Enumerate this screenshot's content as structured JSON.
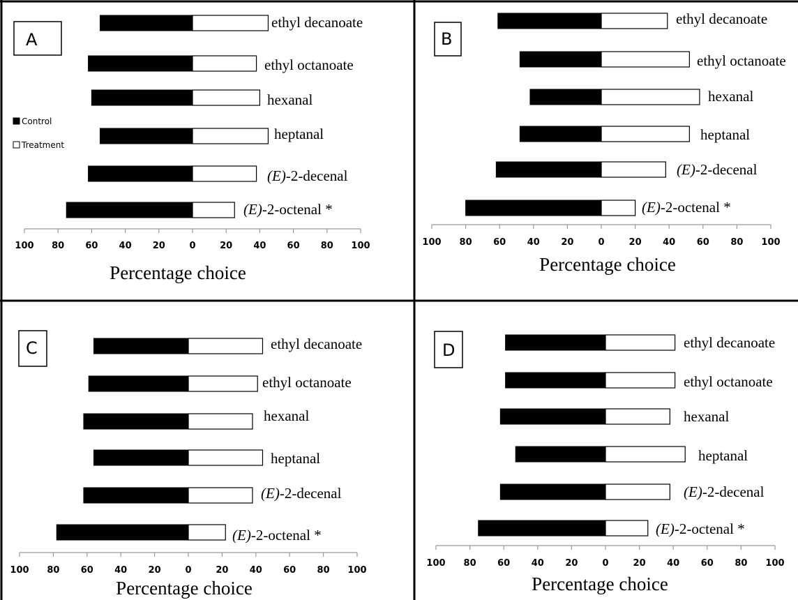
{
  "legend": {
    "control_label": "Control",
    "treatment_label": "Treatment"
  },
  "chart_data": [
    {
      "type": "bar",
      "panel": "A",
      "categories": [
        "ethyl decanoate",
        "ethyl octanoate",
        "hexanal",
        "heptanal",
        "(E)-2-decenal",
        "(E)-2-octenal *"
      ],
      "series": [
        {
          "name": "Control",
          "values": [
            55,
            62,
            60,
            55,
            62,
            75
          ]
        },
        {
          "name": "Treatment",
          "values": [
            45,
            38,
            40,
            45,
            38,
            25
          ]
        }
      ],
      "xlabel": "Percentage choice",
      "xlim": [
        -100,
        100
      ],
      "tick_labels": [
        "100",
        "80",
        "60",
        "40",
        "20",
        "0",
        "20",
        "40",
        "60",
        "80",
        "100"
      ]
    },
    {
      "type": "bar",
      "panel": "B",
      "categories": [
        "ethyl decanoate",
        "ethyl octanoate",
        "hexanal",
        "heptanal",
        "(E)-2-decenal",
        "(E)-2-octenal *"
      ],
      "series": [
        {
          "name": "Control",
          "values": [
            61,
            48,
            42,
            48,
            62,
            80
          ]
        },
        {
          "name": "Treatment",
          "values": [
            39,
            52,
            58,
            52,
            38,
            20
          ]
        }
      ],
      "xlabel": "Percentage choice",
      "xlim": [
        -100,
        100
      ],
      "tick_labels": [
        "100",
        "80",
        "60",
        "40",
        "20",
        "0",
        "20",
        "40",
        "60",
        "80",
        "100"
      ]
    },
    {
      "type": "bar",
      "panel": "C",
      "categories": [
        "ethyl decanoate",
        "ethyl octanoate",
        "hexanal",
        "heptanal",
        "(E)-2-decenal",
        "(E)-2-octenal *"
      ],
      "series": [
        {
          "name": "Control",
          "values": [
            56,
            59,
            62,
            56,
            62,
            78
          ]
        },
        {
          "name": "Treatment",
          "values": [
            44,
            41,
            38,
            44,
            38,
            22
          ]
        }
      ],
      "xlabel": "Percentage choice",
      "xlim": [
        -100,
        100
      ],
      "tick_labels": [
        "100",
        "80",
        "60",
        "40",
        "20",
        "0",
        "20",
        "40",
        "60",
        "80",
        "100"
      ]
    },
    {
      "type": "bar",
      "panel": "D",
      "categories": [
        "ethyl decanoate",
        "ethyl octanoate",
        "hexanal",
        "heptanal",
        "(E)-2-decenal",
        "(E)-2-octenal *"
      ],
      "series": [
        {
          "name": "Control",
          "values": [
            59,
            59,
            62,
            53,
            62,
            75
          ]
        },
        {
          "name": "Treatment",
          "values": [
            41,
            41,
            38,
            47,
            38,
            25
          ]
        }
      ],
      "xlabel": "Percentage choice",
      "xlim": [
        -100,
        100
      ],
      "tick_labels": [
        "100",
        "80",
        "60",
        "40",
        "20",
        "0",
        "20",
        "40",
        "60",
        "80",
        "100"
      ]
    }
  ]
}
